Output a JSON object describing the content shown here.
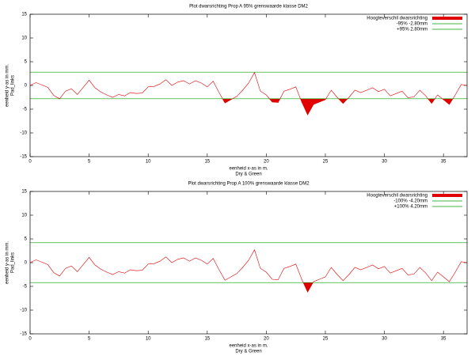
{
  "chart_data": [
    {
      "type": "line",
      "title": "Plot dwarsrichting Prop A 95% grenswaarde klasse DM2",
      "xlabel": [
        "eenheid x-as in m.",
        "Dry & Green"
      ],
      "ylabel": [
        "eenheid y-as in mm.",
        "Pad_links"
      ],
      "x": [
        0,
        0.5,
        1,
        1.5,
        2,
        2.5,
        3,
        3.5,
        4,
        4.5,
        5,
        5.5,
        6,
        6.5,
        7,
        7.5,
        8,
        8.5,
        9,
        9.5,
        10,
        10.5,
        11,
        11.5,
        12,
        12.5,
        13,
        13.5,
        14,
        14.5,
        15,
        15.5,
        16,
        16.5,
        17,
        17.5,
        18,
        18.5,
        19,
        19.5,
        20,
        20.5,
        21,
        21.5,
        22,
        22.5,
        23,
        23.5,
        24,
        24.5,
        25,
        25.5,
        26,
        26.5,
        27,
        27.5,
        28,
        28.5,
        29,
        29.5,
        30,
        30.5,
        31,
        31.5,
        32,
        32.5,
        33,
        33.5,
        34,
        34.5,
        35,
        35.5,
        36,
        36.5,
        37
      ],
      "series": [
        {
          "name": "Hoogteverschil dwarsrichting",
          "color": "#e00000",
          "values": [
            0.0,
            0.6,
            0.1,
            -0.4,
            -2.1,
            -2.8,
            -1.2,
            -0.7,
            -1.9,
            -0.4,
            1.1,
            -0.5,
            -1.4,
            -2.0,
            -2.5,
            -1.9,
            -2.2,
            -1.5,
            -1.7,
            -1.6,
            -0.3,
            -0.2,
            0.3,
            1.2,
            0.0,
            0.7,
            1.0,
            0.3,
            1.0,
            0.5,
            -0.3,
            0.9,
            -1.5,
            -3.7,
            -3.0,
            -2.3,
            -1.0,
            0.5,
            2.7,
            -1.2,
            -2.0,
            -3.5,
            -3.6,
            -1.2,
            -0.8,
            -0.3,
            -3.5,
            -6.2,
            -4.0,
            -3.5,
            -3.0,
            -1.0,
            -2.5,
            -3.8,
            -2.5,
            -1.0,
            -1.5,
            -1.0,
            -0.5,
            -1.3,
            -0.8,
            -2.2,
            -1.7,
            -1.2,
            -2.6,
            -2.4,
            -1.0,
            -2.2,
            -3.8,
            -2.0,
            -3.0,
            -4.0,
            -2.0,
            0.2,
            0.0
          ]
        }
      ],
      "limits": [
        {
          "name": "-95% -2.80mm",
          "color": "#00a000",
          "value": -2.8
        },
        {
          "name": "+95%  2.80mm",
          "color": "#00a000",
          "value": 2.8
        }
      ],
      "xlim": [
        0,
        37
      ],
      "xticks": [
        0,
        5,
        10,
        15,
        20,
        25,
        30,
        35
      ],
      "ylim": [
        -15,
        15
      ],
      "yticks": [
        -15,
        -10,
        -5,
        0,
        5,
        10,
        15
      ],
      "legend": "top right"
    },
    {
      "type": "line",
      "title": "Plot dwarsrichting Prop A 100% grenswaarde klasse DM2",
      "xlabel": [
        "eenheid x-as in m.",
        "Dry & Green"
      ],
      "ylabel": [
        "eenheid y-as in mm.",
        "Pad_links"
      ],
      "x": [
        0,
        0.5,
        1,
        1.5,
        2,
        2.5,
        3,
        3.5,
        4,
        4.5,
        5,
        5.5,
        6,
        6.5,
        7,
        7.5,
        8,
        8.5,
        9,
        9.5,
        10,
        10.5,
        11,
        11.5,
        12,
        12.5,
        13,
        13.5,
        14,
        14.5,
        15,
        15.5,
        16,
        16.5,
        17,
        17.5,
        18,
        18.5,
        19,
        19.5,
        20,
        20.5,
        21,
        21.5,
        22,
        22.5,
        23,
        23.5,
        24,
        24.5,
        25,
        25.5,
        26,
        26.5,
        27,
        27.5,
        28,
        28.5,
        29,
        29.5,
        30,
        30.5,
        31,
        31.5,
        32,
        32.5,
        33,
        33.5,
        34,
        34.5,
        35,
        35.5,
        36,
        36.5,
        37
      ],
      "series": [
        {
          "name": "Hoogteverschil dwarsrichting",
          "color": "#e00000",
          "values": [
            0.0,
            0.6,
            0.1,
            -0.4,
            -2.1,
            -2.8,
            -1.2,
            -0.7,
            -1.9,
            -0.4,
            1.1,
            -0.5,
            -1.4,
            -2.0,
            -2.5,
            -1.9,
            -2.2,
            -1.5,
            -1.7,
            -1.6,
            -0.3,
            -0.2,
            0.3,
            1.2,
            0.0,
            0.7,
            1.0,
            0.3,
            1.0,
            0.5,
            -0.3,
            0.9,
            -1.5,
            -3.7,
            -3.0,
            -2.3,
            -1.0,
            0.5,
            2.7,
            -1.2,
            -2.0,
            -3.5,
            -3.6,
            -1.2,
            -0.8,
            -0.3,
            -3.5,
            -6.2,
            -4.0,
            -3.5,
            -3.0,
            -1.0,
            -2.5,
            -3.8,
            -2.5,
            -1.0,
            -1.5,
            -1.0,
            -0.5,
            -1.3,
            -0.8,
            -2.2,
            -1.7,
            -1.2,
            -2.6,
            -2.4,
            -1.0,
            -2.2,
            -3.8,
            -2.0,
            -3.0,
            -4.0,
            -2.0,
            0.2,
            0.0
          ]
        }
      ],
      "limits": [
        {
          "name": "-100% -4.20mm",
          "color": "#00a000",
          "value": -4.2
        },
        {
          "name": "+100%  4.20mm",
          "color": "#00a000",
          "value": 4.2
        }
      ],
      "xlim": [
        0,
        37
      ],
      "xticks": [
        0,
        5,
        10,
        15,
        20,
        25,
        30,
        35
      ],
      "ylim": [
        -15,
        15
      ],
      "yticks": [
        -15,
        -10,
        -5,
        0,
        5,
        10,
        15
      ],
      "legend": "top right"
    }
  ]
}
